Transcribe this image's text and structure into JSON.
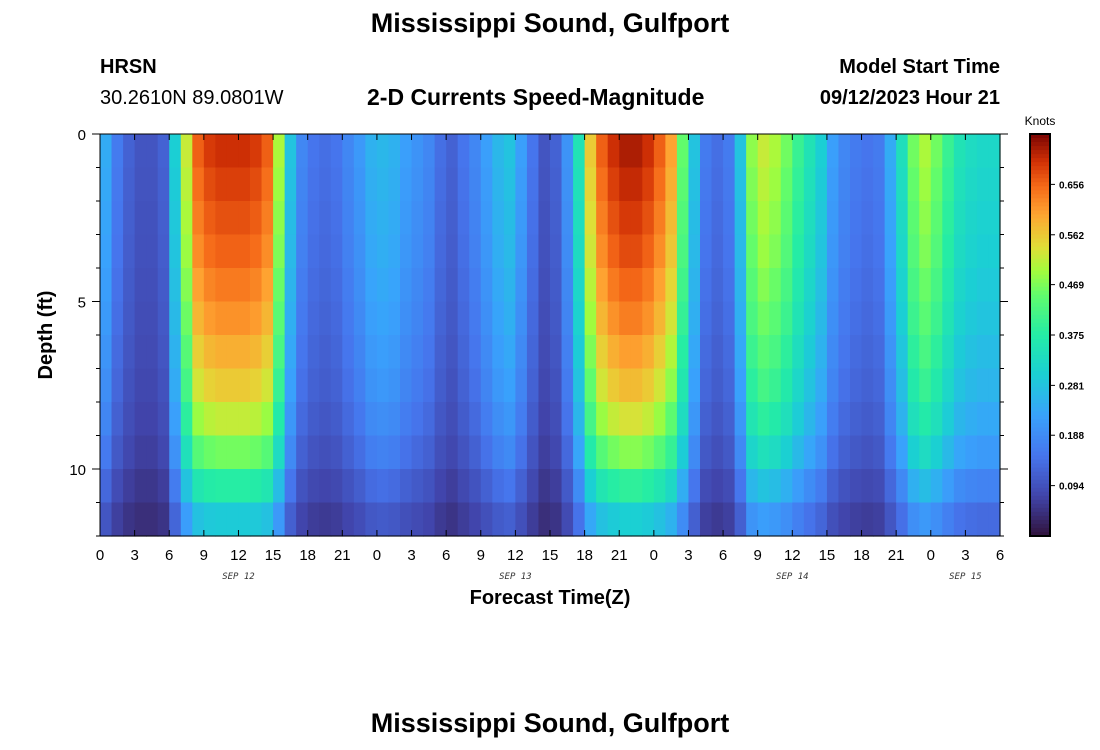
{
  "page": {
    "title": "Mississippi Sound, Gulfport",
    "station_id": "HRSN",
    "coordinates": "30.2610N  89.0801W",
    "plot_title": "2-D Currents Speed-Magnitude",
    "model_start_label": "Model Start Time",
    "model_start_value": "09/12/2023 Hour 21",
    "footer_title": "Mississippi Sound, Gulfport"
  },
  "chart_data": {
    "type": "heatmap",
    "title": "2-D Currents Speed-Magnitude",
    "xlabel": "Forecast Time(Z)",
    "ylabel": "Depth (ft)",
    "x_tick_labels": [
      "0",
      "3",
      "6",
      "9",
      "12",
      "15",
      "18",
      "21",
      "0",
      "3",
      "6",
      "9",
      "12",
      "15",
      "18",
      "21",
      "0",
      "3",
      "6",
      "9",
      "12",
      "15",
      "18",
      "21",
      "0",
      "3",
      "6"
    ],
    "date_labels": [
      {
        "label": "SEP 12",
        "hour": 12
      },
      {
        "label": "SEP 13",
        "hour": 36
      },
      {
        "label": "SEP 14",
        "hour": 60
      },
      {
        "label": "SEP 15",
        "hour": 75
      }
    ],
    "xlim_hours": [
      0,
      78
    ],
    "y_tick_labels": [
      "0",
      "5",
      "10"
    ],
    "y_tick_values": [
      0,
      5,
      10
    ],
    "ylim_ft": [
      0,
      12
    ],
    "units": "Knots",
    "colorbar": {
      "label": "Knots",
      "range": [
        0.0,
        0.75
      ],
      "tick_labels": [
        "0.656",
        "0.562",
        "0.469",
        "0.375",
        "0.281",
        "0.188",
        "0.094"
      ],
      "tick_values": [
        0.656,
        0.562,
        0.469,
        0.375,
        0.281,
        0.188,
        0.094
      ]
    },
    "depth_rows_ft": [
      0.5,
      1.5,
      2.5,
      3.5,
      4.5,
      5.5,
      6.5,
      7.5,
      8.5,
      9.5,
      10.5,
      11.5
    ],
    "time_columns_hours": [
      0.5,
      1.5,
      2.5,
      3.5,
      4.5,
      5.5,
      6.5,
      7.5,
      8.5,
      9.5,
      10.5,
      11.5,
      12.5,
      13.5,
      14.5,
      15.5,
      16.5,
      17.5,
      18.5,
      19.5,
      20.5,
      21.5,
      22.5,
      23.5,
      24.5,
      25.5,
      26.5,
      27.5,
      28.5,
      29.5,
      30.5,
      31.5,
      32.5,
      33.5,
      34.5,
      35.5,
      36.5,
      37.5,
      38.5,
      39.5,
      40.5,
      41.5,
      42.5,
      43.5,
      44.5,
      45.5,
      46.5,
      47.5,
      48.5,
      49.5,
      50.5,
      51.5,
      52.5,
      53.5,
      54.5,
      55.5,
      56.5,
      57.5,
      58.5,
      59.5,
      60.5,
      61.5,
      62.5,
      63.5,
      64.5,
      65.5,
      66.5,
      67.5,
      68.5,
      69.5,
      70.5,
      71.5,
      72.5,
      73.5,
      74.5,
      75.5,
      76.5,
      77.5
    ],
    "surface_speed_knots": [
      0.24,
      0.16,
      0.12,
      0.1,
      0.1,
      0.12,
      0.3,
      0.52,
      0.66,
      0.69,
      0.7,
      0.7,
      0.7,
      0.69,
      0.66,
      0.5,
      0.28,
      0.18,
      0.15,
      0.14,
      0.15,
      0.18,
      0.21,
      0.25,
      0.26,
      0.25,
      0.22,
      0.2,
      0.18,
      0.14,
      0.12,
      0.15,
      0.18,
      0.22,
      0.26,
      0.28,
      0.22,
      0.15,
      0.1,
      0.12,
      0.2,
      0.35,
      0.56,
      0.66,
      0.7,
      0.72,
      0.72,
      0.7,
      0.66,
      0.6,
      0.45,
      0.28,
      0.16,
      0.14,
      0.16,
      0.28,
      0.48,
      0.52,
      0.5,
      0.46,
      0.4,
      0.35,
      0.3,
      0.22,
      0.18,
      0.16,
      0.15,
      0.16,
      0.24,
      0.34,
      0.46,
      0.5,
      0.46,
      0.4,
      0.35,
      0.33,
      0.32,
      0.32
    ],
    "depth_attenuation": [
      1.0,
      0.98,
      0.96,
      0.94,
      0.91,
      0.88,
      0.84,
      0.8,
      0.74,
      0.66,
      0.54,
      0.42
    ]
  }
}
